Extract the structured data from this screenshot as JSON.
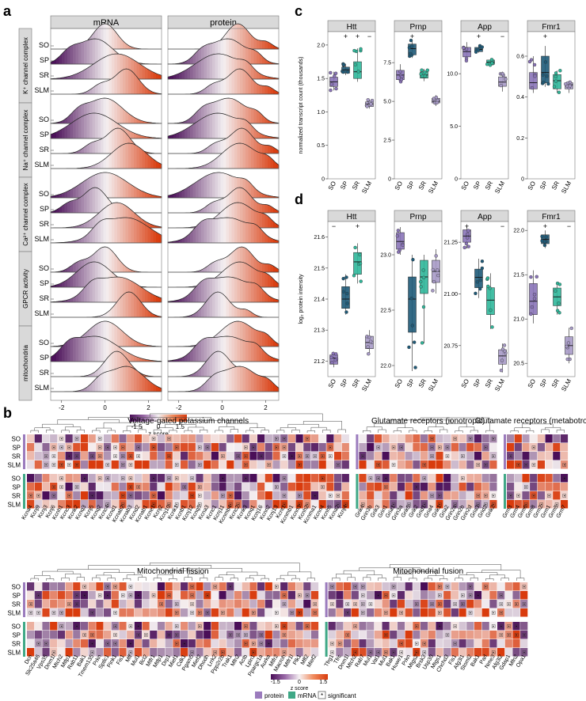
{
  "panel_letters": {
    "a": "a",
    "b": "b",
    "c": "c",
    "d": "d"
  },
  "panel_a": {
    "columns": [
      "mRNA",
      "protein"
    ],
    "groups": [
      "K⁺ channel complex",
      "Na⁺ channel complex",
      "Ca²⁺ channel complex",
      "GPCR activity",
      "mitochondria"
    ],
    "layers": [
      "SO",
      "SP",
      "SR",
      "SLM"
    ],
    "x_ticks": [
      "-2",
      "0",
      "2"
    ],
    "x_range": [
      -2.5,
      2.6
    ],
    "colorbar": {
      "title": "z score",
      "ticks": [
        "-1.5",
        "0",
        "1.5"
      ],
      "low": "#5b1a66",
      "mid": "#f5f0f2",
      "high": "#e8461e"
    }
  },
  "panel_c": {
    "ylabel": "normalized transcript count (thousands)",
    "categories": [
      "SO",
      "SP",
      "SR",
      "SLM"
    ],
    "colors": [
      "#8a74b8",
      "#1e5a78",
      "#2fb79a",
      "#a79ac6"
    ],
    "facets": [
      {
        "title": "Htt",
        "ylim": [
          0,
          2.2
        ],
        "ticks": [
          "0",
          "0.5",
          "1.0",
          "1.5",
          "2.0"
        ],
        "tickvals": [
          0,
          0.5,
          1.0,
          1.5,
          2.0
        ],
        "signif": [
          "",
          "+",
          "+",
          "−"
        ],
        "boxes": [
          [
            1.32,
            1.38,
            1.45,
            1.52,
            1.6
          ],
          [
            1.55,
            1.58,
            1.63,
            1.67,
            1.72
          ],
          [
            1.45,
            1.5,
            1.6,
            1.75,
            1.95
          ],
          [
            1.05,
            1.08,
            1.12,
            1.15,
            1.18
          ]
        ]
      },
      {
        "title": "Prnp",
        "ylim": [
          0,
          9.5
        ],
        "ticks": [
          "0",
          "2.5",
          "5.0",
          "7.5"
        ],
        "tickvals": [
          0,
          2.5,
          5.0,
          7.5
        ],
        "signif": [
          "",
          "+",
          "",
          ""
        ],
        "boxes": [
          [
            6.2,
            6.4,
            6.7,
            7.0,
            7.4
          ],
          [
            7.8,
            8.0,
            8.4,
            8.7,
            9.0
          ],
          [
            6.3,
            6.5,
            6.7,
            6.9,
            7.1
          ],
          [
            4.7,
            4.9,
            5.0,
            5.2,
            5.4
          ]
        ]
      },
      {
        "title": "App",
        "ylim": [
          0,
          14
        ],
        "ticks": [
          "0",
          "5.0",
          "10.0"
        ],
        "tickvals": [
          0,
          5,
          10
        ],
        "signif": [
          "",
          "+",
          "",
          "−"
        ],
        "boxes": [
          [
            11.2,
            11.6,
            12.1,
            12.5,
            13.0
          ],
          [
            12.0,
            12.1,
            12.3,
            12.5,
            12.7
          ],
          [
            10.8,
            10.9,
            11.1,
            11.3,
            11.4
          ],
          [
            8.3,
            8.8,
            9.2,
            9.7,
            10.2
          ]
        ]
      },
      {
        "title": "Fmr1",
        "ylim": [
          0,
          0.72
        ],
        "ticks": [
          "0",
          "0.2",
          "0.4",
          "0.6"
        ],
        "tickvals": [
          0,
          0.2,
          0.4,
          0.6
        ],
        "signif": [
          "",
          "+",
          "",
          ""
        ],
        "boxes": [
          [
            0.42,
            0.44,
            0.47,
            0.52,
            0.6
          ],
          [
            0.45,
            0.47,
            0.52,
            0.6,
            0.65
          ],
          [
            0.42,
            0.44,
            0.48,
            0.51,
            0.53
          ],
          [
            0.42,
            0.44,
            0.46,
            0.47,
            0.48
          ]
        ]
      }
    ]
  },
  "panel_d": {
    "ylabel": "log₂ protein intensity",
    "categories": [
      "SO",
      "SP",
      "SR",
      "SLM"
    ],
    "facets": [
      {
        "title": "Htt",
        "ylim": [
          21.15,
          21.65
        ],
        "ticks": [
          "21.2",
          "21.3",
          "21.4",
          "21.5",
          "21.6"
        ],
        "tickvals": [
          21.2,
          21.3,
          21.4,
          21.5,
          21.6
        ],
        "signif": [
          "−",
          "",
          "+",
          ""
        ],
        "boxes": [
          [
            21.18,
            21.19,
            21.21,
            21.22,
            21.23
          ],
          [
            21.35,
            21.37,
            21.4,
            21.44,
            21.48
          ],
          [
            21.45,
            21.48,
            21.52,
            21.55,
            21.58
          ],
          [
            21.22,
            21.24,
            21.26,
            21.28,
            21.3
          ]
        ]
      },
      {
        "title": "Prnp",
        "ylim": [
          21.9,
          23.3
        ],
        "ticks": [
          "22.0",
          "22.5",
          "23.0"
        ],
        "tickvals": [
          22,
          22.5,
          23
        ],
        "signif": [
          "",
          "",
          "",
          ""
        ],
        "boxes": [
          [
            23.0,
            23.05,
            23.12,
            23.2,
            23.25
          ],
          [
            21.95,
            22.3,
            22.6,
            22.8,
            23.0
          ],
          [
            22.2,
            22.65,
            22.8,
            22.95,
            23.0
          ],
          [
            22.65,
            22.75,
            22.85,
            22.95,
            23.05
          ]
        ]
      },
      {
        "title": "App",
        "ylim": [
          20.6,
          21.35
        ],
        "ticks": [
          "20.75",
          "21.00",
          "21.25"
        ],
        "tickvals": [
          20.75,
          21.0,
          21.25
        ],
        "signif": [
          "+",
          "",
          "",
          "−"
        ],
        "boxes": [
          [
            21.22,
            21.25,
            21.28,
            21.31,
            21.33
          ],
          [
            20.98,
            21.03,
            21.08,
            21.12,
            21.17
          ],
          [
            20.83,
            20.9,
            20.97,
            21.03,
            21.1
          ],
          [
            20.62,
            20.66,
            20.7,
            20.73,
            20.76
          ]
        ]
      },
      {
        "title": "Fmr1",
        "ylim": [
          20.35,
          22.1
        ],
        "ticks": [
          "20.5",
          "21.0",
          "21.5",
          "22.0"
        ],
        "tickvals": [
          20.5,
          21,
          21.5,
          22
        ],
        "signif": [
          "",
          "+",
          "",
          "−"
        ],
        "boxes": [
          [
            20.95,
            21.05,
            21.2,
            21.4,
            21.55
          ],
          [
            21.8,
            21.85,
            21.9,
            21.95,
            22.0
          ],
          [
            21.05,
            21.15,
            21.25,
            21.35,
            21.42
          ],
          [
            20.5,
            20.6,
            20.7,
            20.8,
            20.9
          ]
        ]
      }
    ]
  },
  "panel_b": {
    "sections_top": [
      {
        "title": "Voltage-gated potassium channels",
        "genes": [
          "Kcna4",
          "Kcnj9",
          "Kcnj3",
          "Kcnj6",
          "Kcnh1",
          "Kcnc3",
          "Kcnk2",
          "Kcnq3",
          "Kcnj5",
          "Kcnq2",
          "Kcnc4",
          "Kcnd1",
          "Kcnab2",
          "Kcnab3",
          "Kcnd2",
          "Kcnab1",
          "Kcne1",
          "Kcnj2",
          "Kcnj10",
          "Kcnk1",
          "Kcnb1",
          "Kcnj12",
          "Kcnq5",
          "Kcna3",
          "Kcnc1",
          "Kcnj11",
          "Kcnmb4",
          "Kcnc2",
          "Kcnk3",
          "Kcnq1",
          "Kcnj16",
          "Kcnn2",
          "Kcnj13",
          "Kcnt1",
          "Kcnmb1",
          "Kcnn3",
          "Kcnh2",
          "Kcnma1",
          "Kcnn4",
          "Kcnh5",
          "Kcna2",
          "Kcnj4"
        ]
      },
      {
        "title": "Glutamate receptors (ionotropic)",
        "genes": [
          "Grik4",
          "Grin3b",
          "Grik3",
          "Grin1",
          "Gria1",
          "Grin3a",
          "Grik5",
          "Grik2",
          "Grid1",
          "Gria4",
          "Grik1",
          "Gria2",
          "Grin2a",
          "Grin2b",
          "Grin2d",
          "Gria3",
          "Grid2",
          "Grik2"
        ]
      },
      {
        "title": "Glutamate receptors (metabotropic)",
        "genes": [
          "Grm3",
          "Grm4",
          "Grm6",
          "Grm8",
          "Grm2",
          "Grm1",
          "Grm5",
          "Grm7"
        ]
      }
    ],
    "sections_bottom": [
      {
        "title": "Mitochondrial fission",
        "genes": [
          "Dcn",
          "Slc25a46",
          "Vps35",
          "Dnm1l",
          "Mtch2",
          "Mtfp1",
          "Rab11",
          "Bak1",
          "Tmem135",
          "Prkn",
          "Sptlc1",
          "Pink1",
          "Fis1",
          "Mff",
          "Mul1",
          "Bcl2",
          "Mtfr1",
          "Mtfp1",
          "Drp1",
          "Mief1",
          "Cdk1",
          "Pgam5",
          "Mief2",
          "Dhodh",
          "Lrrk2",
          "Ppp2r2b",
          "Trak1",
          "Mfn2",
          "Actb",
          "Lpin1",
          "Ppargc1a",
          "Aurka",
          "Mtfr2",
          "Macroh",
          "Mtfr1l",
          "Plk1",
          "Mff2",
          "Mief2"
        ]
      },
      {
        "title": "Mitochondrial fusion",
        "genes": [
          "Tfrg1",
          "Tfrc",
          "Dnm1l",
          "Mtch2",
          "Rab7",
          "Mul1",
          "Vat1",
          "Mul1",
          "Bak1",
          "Huwe1",
          "Prkn",
          "Mtgs2",
          "Brsk3",
          "Usp30",
          "Mtgs1",
          "Chchd3",
          "Fis1",
          "Afg3l1",
          "Stoml2",
          "Bak1",
          "Parl",
          "Nme3",
          "Afg3l2",
          "Gdap1",
          "Mfn2",
          "Opa1"
        ]
      }
    ],
    "row_labels": [
      "SO",
      "SP",
      "SR",
      "SLM"
    ],
    "colorbar": {
      "title": "z score",
      "ticks": [
        "-1.5",
        "0",
        "1.5"
      ]
    },
    "legend": {
      "protein": "protein",
      "mrna": "mRNA",
      "significant": "significant",
      "significant_mark": "*",
      "protein_color": "#9b7bbd",
      "mrna_color": "#3fa886"
    }
  }
}
